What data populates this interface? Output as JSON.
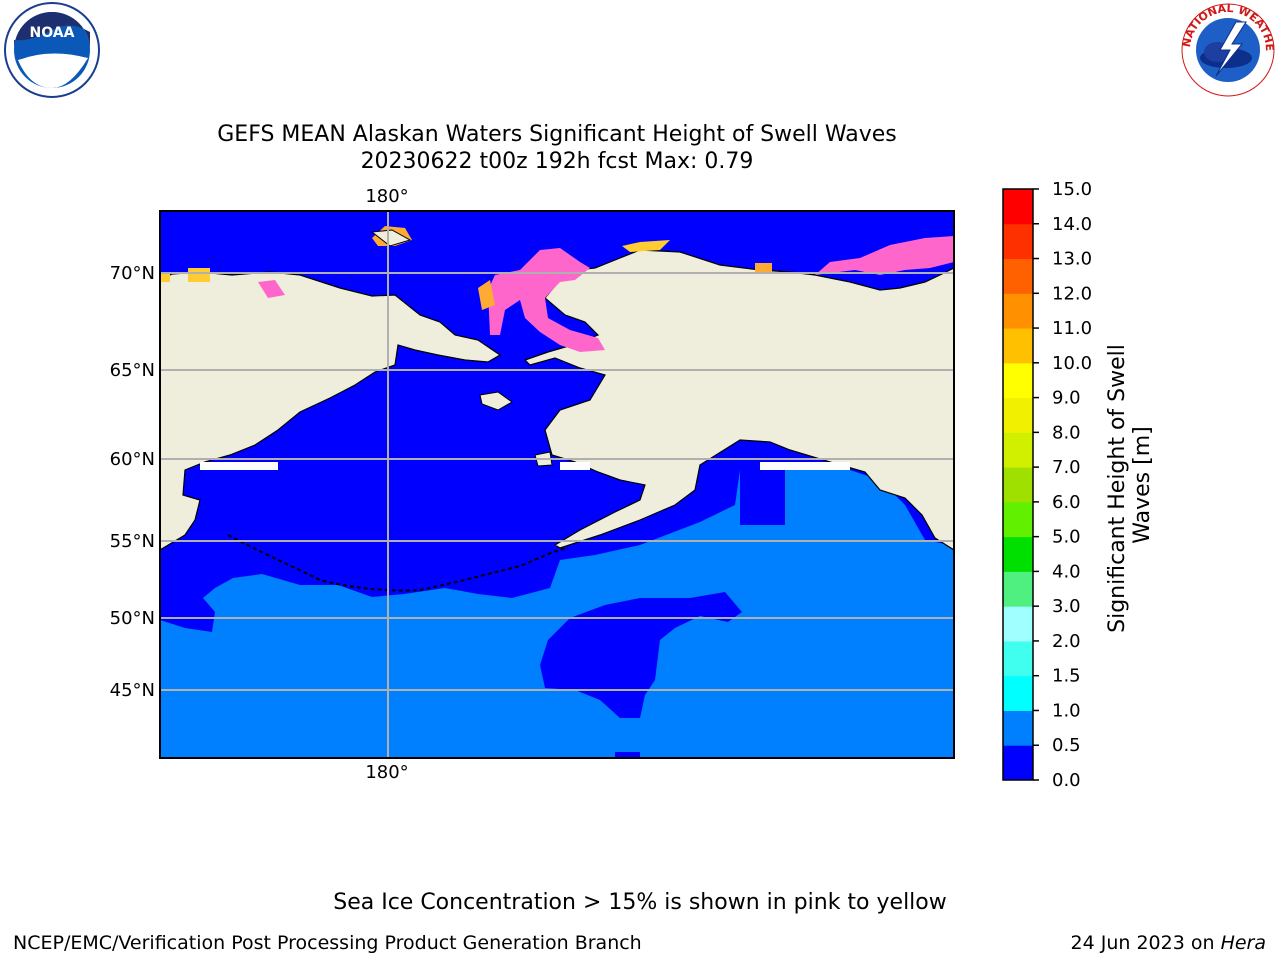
{
  "header": {
    "title_line1": "GEFS MEAN Alaskan Waters Significant Height of Swell Waves",
    "title_line2": "20230622 t00z 192h fcst   Max: 0.79"
  },
  "logos": {
    "left": {
      "icon": "noaa-logo",
      "text": "NOAA"
    },
    "right": {
      "icon": "nws-logo",
      "text": "NATIONAL WEATHER SERVICE"
    }
  },
  "map": {
    "projection": "plate-carree",
    "lat_labels": [
      "70°N",
      "65°N",
      "60°N",
      "55°N",
      "50°N",
      "45°N"
    ],
    "lon_label_top": "180°",
    "lon_label_bottom": "180°",
    "gridlines": true,
    "colors": {
      "land": "#efeddb",
      "swell_0_0_5": "#0000ff",
      "swell_0_5_1_0": "#0080ff",
      "sea_ice": "#ff66cc",
      "grid": "#b0b0b0"
    }
  },
  "colorbar": {
    "label_line1": "Significant Height of Swell",
    "label_line2": "Waves [m]",
    "ticks": [
      "0.0",
      "0.5",
      "1.0",
      "1.5",
      "2.0",
      "3.0",
      "4.0",
      "5.0",
      "6.0",
      "7.0",
      "8.0",
      "9.0",
      "10.0",
      "11.0",
      "12.0",
      "13.0",
      "14.0",
      "15.0"
    ],
    "colors": [
      "#0000ff",
      "#0080ff",
      "#00ffff",
      "#40ffee",
      "#a0ffff",
      "#50f080",
      "#00e000",
      "#60f000",
      "#a0e000",
      "#d0f000",
      "#f0f000",
      "#ffff00",
      "#ffc000",
      "#ff9000",
      "#ff6000",
      "#ff3000",
      "#ff0000"
    ]
  },
  "note": "Sea Ice Concentration > 15% is shown in pink to yellow",
  "footer": {
    "left": "NCEP/EMC/Verification Post Processing Product Generation Branch",
    "right_date": "24 Jun 2023 on ",
    "right_host": "Hera"
  }
}
